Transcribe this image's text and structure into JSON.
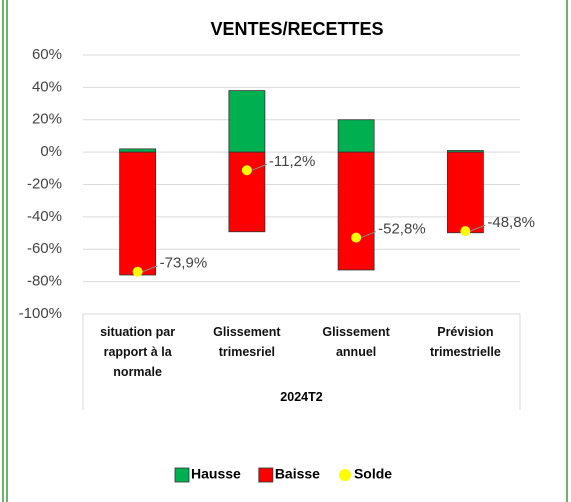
{
  "chart_data": {
    "type": "bar",
    "title": "VENTES/RECETTES",
    "categories": [
      "situation par rapport à la normale",
      "Glissement trimesriel",
      "Glissement annuel",
      "Prévision trimestrielle"
    ],
    "group_label": "2024T2",
    "series": [
      {
        "name": "Hausse",
        "color": "#00b050",
        "values": [
          2,
          38,
          20,
          1
        ]
      },
      {
        "name": "Baisse",
        "color": "#ff0000",
        "values": [
          -75.9,
          -49.2,
          -72.8,
          -49.8
        ]
      },
      {
        "name": "Solde",
        "color": "#ffff00",
        "type": "scatter",
        "values": [
          -73.9,
          -11.2,
          -52.8,
          -48.8
        ],
        "value_labels": [
          "-73,9%",
          "-11,2%",
          "-52,8%",
          "-48,8%"
        ]
      }
    ],
    "ylim": [
      -100,
      60
    ],
    "yticks": [
      {
        "value": 60,
        "label": "60%"
      },
      {
        "value": 40,
        "label": "40%"
      },
      {
        "value": 20,
        "label": "20%"
      },
      {
        "value": 0,
        "label": "0%"
      },
      {
        "value": -20,
        "label": "-20%"
      },
      {
        "value": -40,
        "label": "-40%"
      },
      {
        "value": -60,
        "label": "-60%"
      },
      {
        "value": -80,
        "label": "-80%"
      },
      {
        "value": -100,
        "label": "-100%"
      }
    ],
    "grid": true,
    "legend": "bottom"
  }
}
